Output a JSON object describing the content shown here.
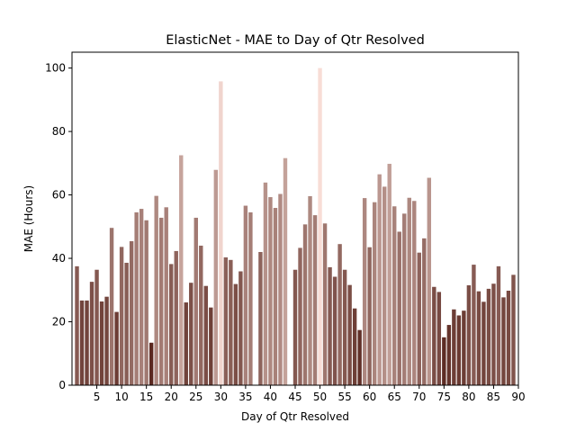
{
  "chart_data": {
    "type": "bar",
    "title": "ElasticNet - MAE to Day of Qtr Resolved",
    "xlabel": "Day of Qtr Resolved",
    "ylabel": "MAE (Hours)",
    "xlim": [
      0,
      90
    ],
    "ylim": [
      0,
      105
    ],
    "xticks": [
      5,
      10,
      15,
      20,
      25,
      30,
      35,
      40,
      45,
      50,
      55,
      60,
      65,
      70,
      75,
      80,
      85,
      90
    ],
    "yticks": [
      0,
      20,
      40,
      60,
      80,
      100
    ],
    "grid": false,
    "color_low": "#5a2820",
    "color_high": "#f8ddd6",
    "x": [
      1,
      2,
      3,
      4,
      5,
      6,
      7,
      8,
      9,
      10,
      11,
      12,
      13,
      14,
      15,
      16,
      17,
      18,
      19,
      20,
      21,
      22,
      23,
      24,
      25,
      26,
      27,
      28,
      29,
      30,
      31,
      32,
      33,
      34,
      35,
      36,
      37,
      38,
      39,
      40,
      41,
      42,
      43,
      44,
      45,
      46,
      47,
      48,
      49,
      50,
      51,
      52,
      53,
      54,
      55,
      56,
      57,
      58,
      59,
      60,
      61,
      62,
      63,
      64,
      65,
      66,
      67,
      68,
      69,
      70,
      71,
      72,
      73,
      74,
      75,
      76,
      77,
      78,
      79,
      80,
      81,
      82,
      83,
      84,
      85,
      86,
      87,
      88,
      89
    ],
    "values": [
      37.5,
      26.7,
      26.7,
      32.6,
      36.4,
      26.4,
      27.9,
      49.6,
      23.1,
      43.6,
      38.6,
      45.4,
      54.5,
      55.6,
      52.0,
      13.4,
      59.7,
      52.8,
      56.1,
      38.2,
      42.3,
      72.5,
      26.1,
      32.3,
      52.8,
      44.0,
      31.3,
      24.5,
      67.9,
      95.8,
      40.3,
      39.5,
      31.9,
      35.9,
      56.6,
      54.5,
      null,
      42.0,
      63.9,
      59.3,
      55.9,
      60.3,
      71.6,
      null,
      36.4,
      43.3,
      50.7,
      59.6,
      53.6,
      100.0,
      51.0,
      37.2,
      34.2,
      44.5,
      36.4,
      31.6,
      24.2,
      17.4,
      59.0,
      43.5,
      57.7,
      66.5,
      62.6,
      69.8,
      56.4,
      48.4,
      54.1,
      59.1,
      58.1,
      41.8,
      46.3,
      65.4,
      31.0,
      29.4,
      15.1,
      19.0,
      23.9,
      22.0,
      23.5,
      31.5,
      38.0,
      29.6,
      26.3,
      30.4,
      32.0,
      37.5,
      27.7,
      29.8,
      34.8
    ]
  }
}
